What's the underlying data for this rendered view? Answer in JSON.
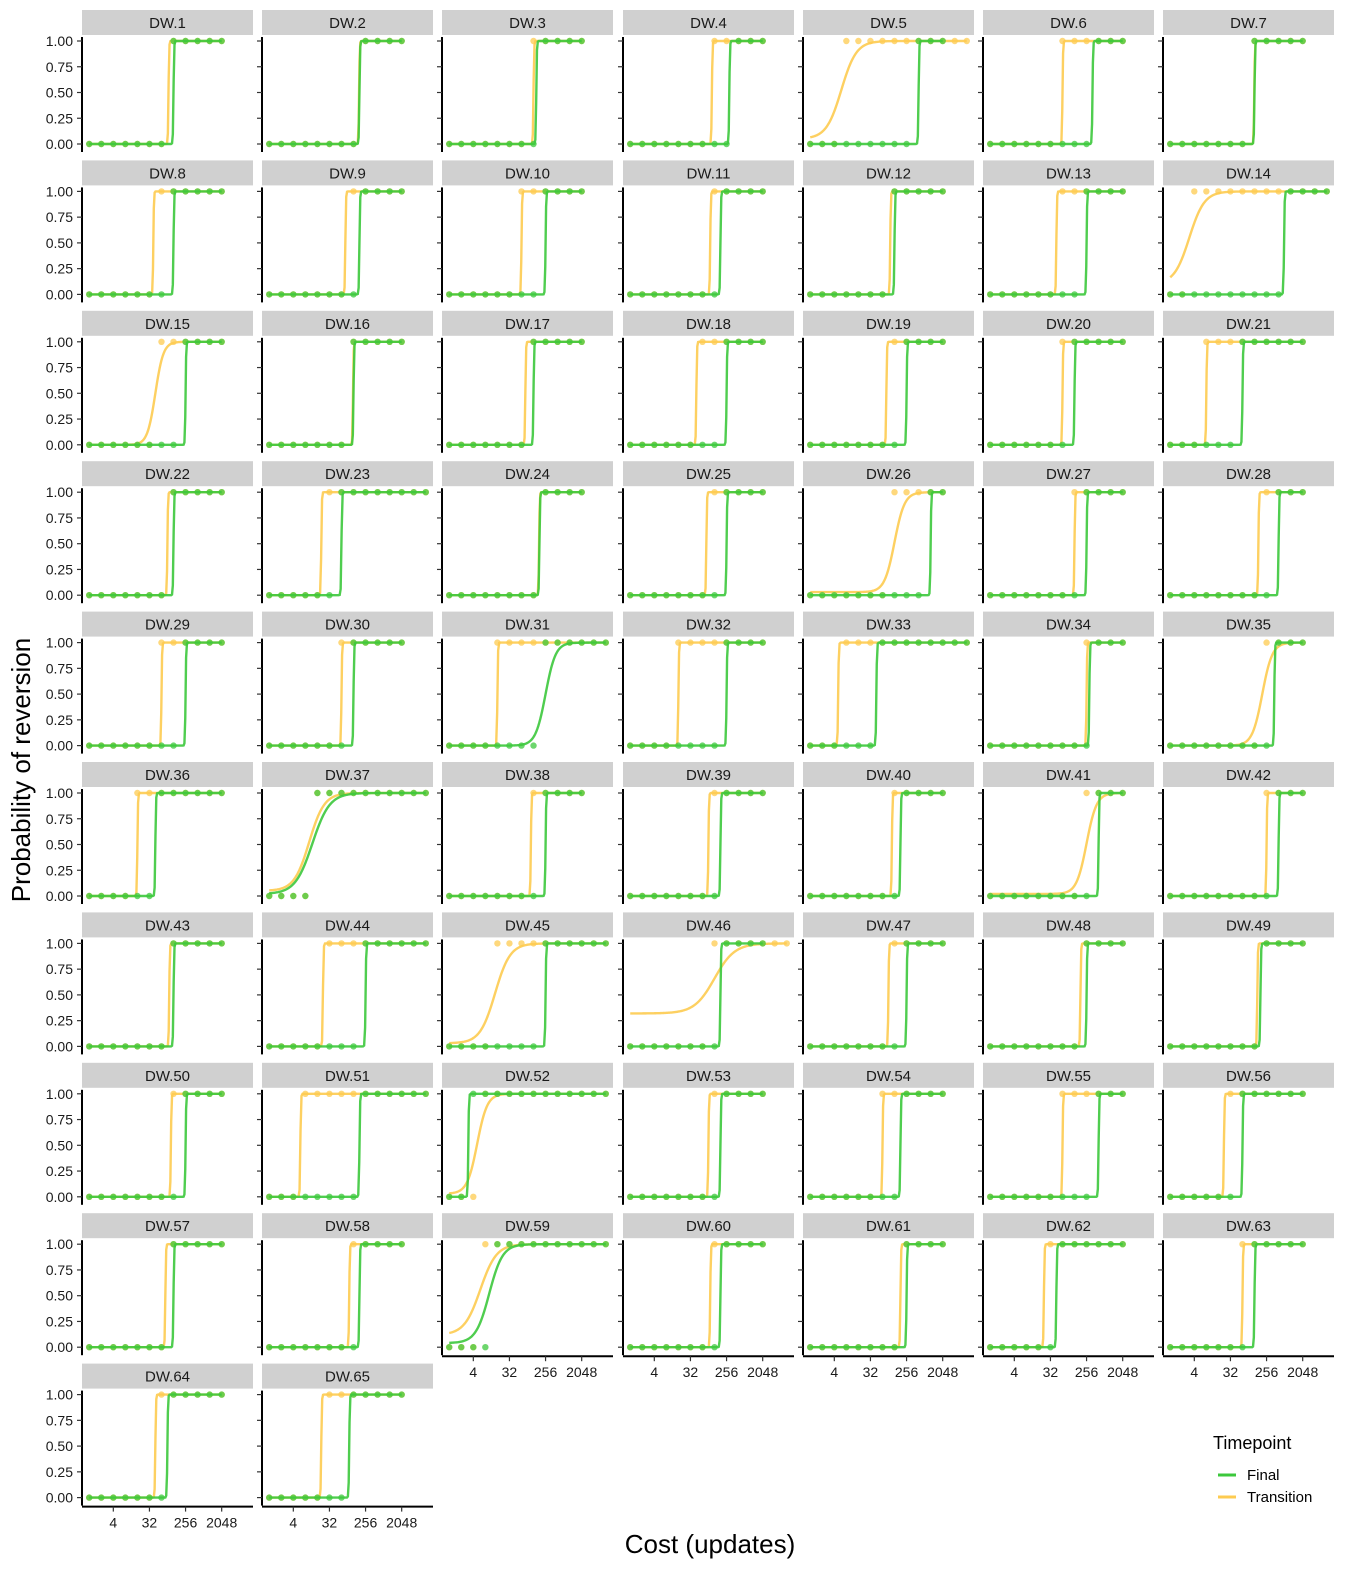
{
  "chart_data": {
    "type": "line",
    "xlabel": "Cost (updates)",
    "ylabel": "Probability of reversion",
    "x_scale": "log2",
    "x_ticks": [
      4,
      32,
      256,
      2048
    ],
    "x_tick_labels": [
      "4",
      "32",
      "256",
      "2048"
    ],
    "y_ticks": [
      0,
      0.25,
      0.5,
      0.75,
      1
    ],
    "y_tick_labels": [
      "0.00",
      "0.25",
      "0.50",
      "0.75",
      "1.00"
    ],
    "ylim": [
      0,
      1
    ],
    "point_x": [
      1,
      2,
      4,
      8,
      16,
      32,
      64,
      128,
      256,
      512,
      1024,
      2048,
      4096,
      8192
    ],
    "grid": false,
    "legend": {
      "title": "Timepoint",
      "position": "bottom-right",
      "entries": [
        {
          "name": "Final",
          "color": "#3cc83c"
        },
        {
          "name": "Transition",
          "color": "#fdcb50"
        }
      ]
    },
    "panels": [
      {
        "label": "DW.1",
        "final": {
          "mid": 128,
          "slope": 40,
          "floor": 0,
          "max_x": 2048
        },
        "transition": {
          "mid": 96,
          "slope": 40,
          "floor": 0,
          "max_x": 2048
        }
      },
      {
        "label": "DW.2",
        "final": {
          "mid": 180,
          "slope": 40,
          "floor": 0,
          "max_x": 2048
        },
        "transition": {
          "mid": 176,
          "slope": 40,
          "floor": 0,
          "max_x": 2048
        }
      },
      {
        "label": "DW.3",
        "final": {
          "mid": 150,
          "slope": 40,
          "floor": 0,
          "max_x": 2048
        },
        "transition": {
          "mid": 128,
          "slope": 40,
          "floor": 0,
          "max_x": 2048
        }
      },
      {
        "label": "DW.4",
        "final": {
          "mid": 300,
          "slope": 40,
          "floor": 0,
          "max_x": 2048
        },
        "transition": {
          "mid": 110,
          "slope": 40,
          "floor": 0,
          "max_x": 2048
        }
      },
      {
        "label": "DW.5",
        "final": {
          "mid": 512,
          "slope": 40,
          "floor": 0,
          "max_x": 2048
        },
        "transition": {
          "mid": 6,
          "slope": 1.6,
          "floor": 0.05,
          "max_x": 8192
        }
      },
      {
        "label": "DW.6",
        "final": {
          "mid": 360,
          "slope": 40,
          "floor": 0,
          "max_x": 2048
        },
        "transition": {
          "mid": 64,
          "slope": 40,
          "floor": 0,
          "max_x": 2048
        }
      },
      {
        "label": "DW.7",
        "final": {
          "mid": 128,
          "slope": 40,
          "floor": 0,
          "max_x": 2048
        },
        "transition": {
          "mid": 126,
          "slope": 40,
          "floor": 0,
          "max_x": 2048
        }
      },
      {
        "label": "DW.8",
        "final": {
          "mid": 128,
          "slope": 40,
          "floor": 0,
          "max_x": 2048
        },
        "transition": {
          "mid": 40,
          "slope": 40,
          "floor": 0,
          "max_x": 2048
        }
      },
      {
        "label": "DW.9",
        "final": {
          "mid": 180,
          "slope": 40,
          "floor": 0,
          "max_x": 2048
        },
        "transition": {
          "mid": 80,
          "slope": 40,
          "floor": 0,
          "max_x": 2048
        }
      },
      {
        "label": "DW.10",
        "final": {
          "mid": 256,
          "slope": 40,
          "floor": 0,
          "max_x": 2048
        },
        "transition": {
          "mid": 64,
          "slope": 40,
          "floor": 0,
          "max_x": 2048
        }
      },
      {
        "label": "DW.11",
        "final": {
          "mid": 180,
          "slope": 40,
          "floor": 0,
          "max_x": 2048
        },
        "transition": {
          "mid": 100,
          "slope": 40,
          "floor": 0,
          "max_x": 2048
        }
      },
      {
        "label": "DW.12",
        "final": {
          "mid": 128,
          "slope": 40,
          "floor": 0,
          "max_x": 2048
        },
        "transition": {
          "mid": 100,
          "slope": 40,
          "floor": 0,
          "max_x": 2048
        }
      },
      {
        "label": "DW.13",
        "final": {
          "mid": 256,
          "slope": 40,
          "floor": 0,
          "max_x": 2048
        },
        "transition": {
          "mid": 45,
          "slope": 40,
          "floor": 0,
          "max_x": 2048
        }
      },
      {
        "label": "DW.14",
        "final": {
          "mid": 700,
          "slope": 40,
          "floor": 0,
          "max_x": 8192
        },
        "transition": {
          "mid": 3,
          "slope": 1.6,
          "floor": 0.1,
          "max_x": 8192
        }
      },
      {
        "label": "DW.15",
        "final": {
          "mid": 256,
          "slope": 40,
          "floor": 0,
          "max_x": 2048
        },
        "transition": {
          "mid": 45,
          "slope": 3,
          "floor": 0,
          "max_x": 2048
        }
      },
      {
        "label": "DW.16",
        "final": {
          "mid": 128,
          "slope": 40,
          "floor": 0,
          "max_x": 2048
        },
        "transition": {
          "mid": 124,
          "slope": 40,
          "floor": 0,
          "max_x": 2048
        }
      },
      {
        "label": "DW.17",
        "final": {
          "mid": 128,
          "slope": 40,
          "floor": 0,
          "max_x": 2048
        },
        "transition": {
          "mid": 80,
          "slope": 40,
          "floor": 0,
          "max_x": 2048
        }
      },
      {
        "label": "DW.18",
        "final": {
          "mid": 256,
          "slope": 40,
          "floor": 0,
          "max_x": 2048
        },
        "transition": {
          "mid": 45,
          "slope": 40,
          "floor": 0,
          "max_x": 2048
        }
      },
      {
        "label": "DW.19",
        "final": {
          "mid": 256,
          "slope": 40,
          "floor": 0,
          "max_x": 2048
        },
        "transition": {
          "mid": 80,
          "slope": 40,
          "floor": 0,
          "max_x": 2048
        }
      },
      {
        "label": "DW.20",
        "final": {
          "mid": 128,
          "slope": 40,
          "floor": 0,
          "max_x": 2048
        },
        "transition": {
          "mid": 64,
          "slope": 40,
          "floor": 0,
          "max_x": 2048
        }
      },
      {
        "label": "DW.21",
        "final": {
          "mid": 64,
          "slope": 40,
          "floor": 0,
          "max_x": 2048
        },
        "transition": {
          "mid": 8,
          "slope": 40,
          "floor": 0,
          "max_x": 2048
        }
      },
      {
        "label": "DW.22",
        "final": {
          "mid": 128,
          "slope": 40,
          "floor": 0,
          "max_x": 2048
        },
        "transition": {
          "mid": 90,
          "slope": 40,
          "floor": 0,
          "max_x": 2048
        }
      },
      {
        "label": "DW.23",
        "final": {
          "mid": 64,
          "slope": 40,
          "floor": 0,
          "max_x": 8192
        },
        "transition": {
          "mid": 20,
          "slope": 40,
          "floor": 0,
          "max_x": 8192
        }
      },
      {
        "label": "DW.24",
        "final": {
          "mid": 180,
          "slope": 40,
          "floor": 0,
          "max_x": 2048
        },
        "transition": {
          "mid": 176,
          "slope": 40,
          "floor": 0,
          "max_x": 2048
        }
      },
      {
        "label": "DW.25",
        "final": {
          "mid": 256,
          "slope": 40,
          "floor": 0,
          "max_x": 2048
        },
        "transition": {
          "mid": 80,
          "slope": 40,
          "floor": 0,
          "max_x": 2048
        }
      },
      {
        "label": "DW.26",
        "final": {
          "mid": 1024,
          "slope": 40,
          "floor": 0,
          "max_x": 2048
        },
        "transition": {
          "mid": 128,
          "slope": 2.4,
          "floor": 0.03,
          "max_x": 2048
        }
      },
      {
        "label": "DW.27",
        "final": {
          "mid": 256,
          "slope": 40,
          "floor": 0,
          "max_x": 2048
        },
        "transition": {
          "mid": 128,
          "slope": 40,
          "floor": 0,
          "max_x": 2048
        }
      },
      {
        "label": "DW.28",
        "final": {
          "mid": 512,
          "slope": 40,
          "floor": 0,
          "max_x": 2048
        },
        "transition": {
          "mid": 160,
          "slope": 40,
          "floor": 0,
          "max_x": 2048
        }
      },
      {
        "label": "DW.29",
        "final": {
          "mid": 256,
          "slope": 40,
          "floor": 0,
          "max_x": 2048
        },
        "transition": {
          "mid": 64,
          "slope": 40,
          "floor": 0,
          "max_x": 2048
        }
      },
      {
        "label": "DW.30",
        "final": {
          "mid": 128,
          "slope": 40,
          "floor": 0,
          "max_x": 2048
        },
        "transition": {
          "mid": 64,
          "slope": 40,
          "floor": 0,
          "max_x": 2048
        }
      },
      {
        "label": "DW.31",
        "final": {
          "mid": 256,
          "slope": 2.4,
          "floor": 0,
          "max_x": 8192
        },
        "transition": {
          "mid": 16,
          "slope": 40,
          "floor": 0,
          "max_x": 8192
        }
      },
      {
        "label": "DW.32",
        "final": {
          "mid": 256,
          "slope": 40,
          "floor": 0,
          "max_x": 2048
        },
        "transition": {
          "mid": 16,
          "slope": 40,
          "floor": 0,
          "max_x": 2048
        }
      },
      {
        "label": "DW.33",
        "final": {
          "mid": 45,
          "slope": 40,
          "floor": 0,
          "max_x": 8192
        },
        "transition": {
          "mid": 5,
          "slope": 40,
          "floor": 0,
          "max_x": 8192
        }
      },
      {
        "label": "DW.34",
        "final": {
          "mid": 300,
          "slope": 40,
          "floor": 0,
          "max_x": 2048
        },
        "transition": {
          "mid": 256,
          "slope": 40,
          "floor": 0,
          "max_x": 2048
        }
      },
      {
        "label": "DW.35",
        "final": {
          "mid": 400,
          "slope": 40,
          "floor": 0,
          "max_x": 2048
        },
        "transition": {
          "mid": 200,
          "slope": 2.4,
          "floor": 0,
          "max_x": 2048
        }
      },
      {
        "label": "DW.36",
        "final": {
          "mid": 45,
          "slope": 40,
          "floor": 0,
          "max_x": 2048
        },
        "transition": {
          "mid": 16,
          "slope": 40,
          "floor": 0,
          "max_x": 2048
        }
      },
      {
        "label": "DW.37",
        "final": {
          "mid": 12,
          "slope": 1.4,
          "floor": 0.02,
          "max_x": 8192
        },
        "transition": {
          "mid": 10,
          "slope": 1.6,
          "floor": 0.05,
          "max_x": 8192
        }
      },
      {
        "label": "DW.38",
        "final": {
          "mid": 256,
          "slope": 40,
          "floor": 0,
          "max_x": 2048
        },
        "transition": {
          "mid": 110,
          "slope": 40,
          "floor": 0,
          "max_x": 2048
        }
      },
      {
        "label": "DW.39",
        "final": {
          "mid": 180,
          "slope": 40,
          "floor": 0,
          "max_x": 2048
        },
        "transition": {
          "mid": 90,
          "slope": 40,
          "floor": 0,
          "max_x": 2048
        }
      },
      {
        "label": "DW.40",
        "final": {
          "mid": 180,
          "slope": 40,
          "floor": 0,
          "max_x": 2048
        },
        "transition": {
          "mid": 110,
          "slope": 40,
          "floor": 0,
          "max_x": 2048
        }
      },
      {
        "label": "DW.41",
        "final": {
          "mid": 512,
          "slope": 40,
          "floor": 0,
          "max_x": 2048
        },
        "transition": {
          "mid": 256,
          "slope": 2.4,
          "floor": 0.02,
          "max_x": 2048
        }
      },
      {
        "label": "DW.42",
        "final": {
          "mid": 512,
          "slope": 40,
          "floor": 0,
          "max_x": 2048
        },
        "transition": {
          "mid": 256,
          "slope": 40,
          "floor": 0,
          "max_x": 2048
        }
      },
      {
        "label": "DW.43",
        "final": {
          "mid": 128,
          "slope": 40,
          "floor": 0,
          "max_x": 2048
        },
        "transition": {
          "mid": 100,
          "slope": 40,
          "floor": 0,
          "max_x": 2048
        }
      },
      {
        "label": "DW.44",
        "final": {
          "mid": 256,
          "slope": 40,
          "floor": 0,
          "max_x": 8192
        },
        "transition": {
          "mid": 22,
          "slope": 40,
          "floor": 0,
          "max_x": 8192
        }
      },
      {
        "label": "DW.45",
        "final": {
          "mid": 256,
          "slope": 40,
          "floor": 0,
          "max_x": 8192
        },
        "transition": {
          "mid": 14,
          "slope": 1.6,
          "floor": 0.03,
          "max_x": 8192
        }
      },
      {
        "label": "DW.46",
        "final": {
          "mid": 180,
          "slope": 40,
          "floor": 0,
          "max_x": 2048
        },
        "transition": {
          "mid": 128,
          "slope": 1.2,
          "floor": 0.32,
          "max_x": 8192
        }
      },
      {
        "label": "DW.47",
        "final": {
          "mid": 256,
          "slope": 40,
          "floor": 0,
          "max_x": 2048
        },
        "transition": {
          "mid": 90,
          "slope": 40,
          "floor": 0,
          "max_x": 2048
        }
      },
      {
        "label": "DW.48",
        "final": {
          "mid": 256,
          "slope": 40,
          "floor": 0,
          "max_x": 2048
        },
        "transition": {
          "mid": 180,
          "slope": 40,
          "floor": 0,
          "max_x": 2048
        }
      },
      {
        "label": "DW.49",
        "final": {
          "mid": 180,
          "slope": 40,
          "floor": 0,
          "max_x": 2048
        },
        "transition": {
          "mid": 150,
          "slope": 40,
          "floor": 0,
          "max_x": 2048
        }
      },
      {
        "label": "DW.50",
        "final": {
          "mid": 256,
          "slope": 40,
          "floor": 0,
          "max_x": 2048
        },
        "transition": {
          "mid": 110,
          "slope": 40,
          "floor": 0,
          "max_x": 2048
        }
      },
      {
        "label": "DW.51",
        "final": {
          "mid": 180,
          "slope": 40,
          "floor": 0,
          "max_x": 8192
        },
        "transition": {
          "mid": 6,
          "slope": 40,
          "floor": 0,
          "max_x": 8192
        }
      },
      {
        "label": "DW.52",
        "final": {
          "mid": 3,
          "slope": 40,
          "floor": 0,
          "max_x": 8192
        },
        "transition": {
          "mid": 5,
          "slope": 2.4,
          "floor": 0.03,
          "max_x": 8192
        }
      },
      {
        "label": "DW.53",
        "final": {
          "mid": 180,
          "slope": 40,
          "floor": 0,
          "max_x": 2048
        },
        "transition": {
          "mid": 90,
          "slope": 40,
          "floor": 0,
          "max_x": 2048
        }
      },
      {
        "label": "DW.54",
        "final": {
          "mid": 180,
          "slope": 40,
          "floor": 0,
          "max_x": 2048
        },
        "transition": {
          "mid": 64,
          "slope": 40,
          "floor": 0,
          "max_x": 2048
        }
      },
      {
        "label": "DW.55",
        "final": {
          "mid": 512,
          "slope": 40,
          "floor": 0,
          "max_x": 2048
        },
        "transition": {
          "mid": 64,
          "slope": 40,
          "floor": 0,
          "max_x": 2048
        }
      },
      {
        "label": "DW.56",
        "final": {
          "mid": 64,
          "slope": 40,
          "floor": 0,
          "max_x": 2048
        },
        "transition": {
          "mid": 22,
          "slope": 40,
          "floor": 0,
          "max_x": 2048
        }
      },
      {
        "label": "DW.57",
        "final": {
          "mid": 128,
          "slope": 40,
          "floor": 0,
          "max_x": 2048
        },
        "transition": {
          "mid": 80,
          "slope": 40,
          "floor": 0,
          "max_x": 2048
        }
      },
      {
        "label": "DW.58",
        "final": {
          "mid": 180,
          "slope": 40,
          "floor": 0,
          "max_x": 2048
        },
        "transition": {
          "mid": 100,
          "slope": 40,
          "floor": 0,
          "max_x": 2048
        }
      },
      {
        "label": "DW.59",
        "final": {
          "mid": 10,
          "slope": 1.8,
          "floor": 0.04,
          "max_x": 8192
        },
        "transition": {
          "mid": 6,
          "slope": 1.5,
          "floor": 0.12,
          "max_x": 8192
        }
      },
      {
        "label": "DW.60",
        "final": {
          "mid": 180,
          "slope": 40,
          "floor": 0,
          "max_x": 2048
        },
        "transition": {
          "mid": 100,
          "slope": 40,
          "floor": 0,
          "max_x": 2048
        }
      },
      {
        "label": "DW.61",
        "final": {
          "mid": 256,
          "slope": 40,
          "floor": 0,
          "max_x": 2048
        },
        "transition": {
          "mid": 180,
          "slope": 40,
          "floor": 0,
          "max_x": 2048
        }
      },
      {
        "label": "DW.62",
        "final": {
          "mid": 45,
          "slope": 40,
          "floor": 0,
          "max_x": 2048
        },
        "transition": {
          "mid": 22,
          "slope": 40,
          "floor": 0,
          "max_x": 2048
        }
      },
      {
        "label": "DW.63",
        "final": {
          "mid": 128,
          "slope": 40,
          "floor": 0,
          "max_x": 2048
        },
        "transition": {
          "mid": 64,
          "slope": 40,
          "floor": 0,
          "max_x": 2048
        }
      },
      {
        "label": "DW.64",
        "final": {
          "mid": 90,
          "slope": 40,
          "floor": 0,
          "max_x": 2048
        },
        "transition": {
          "mid": 45,
          "slope": 40,
          "floor": 0,
          "max_x": 2048
        }
      },
      {
        "label": "DW.65",
        "final": {
          "mid": 100,
          "slope": 40,
          "floor": 0,
          "max_x": 2048
        },
        "transition": {
          "mid": 20,
          "slope": 40,
          "floor": 0,
          "max_x": 2048
        }
      }
    ]
  }
}
